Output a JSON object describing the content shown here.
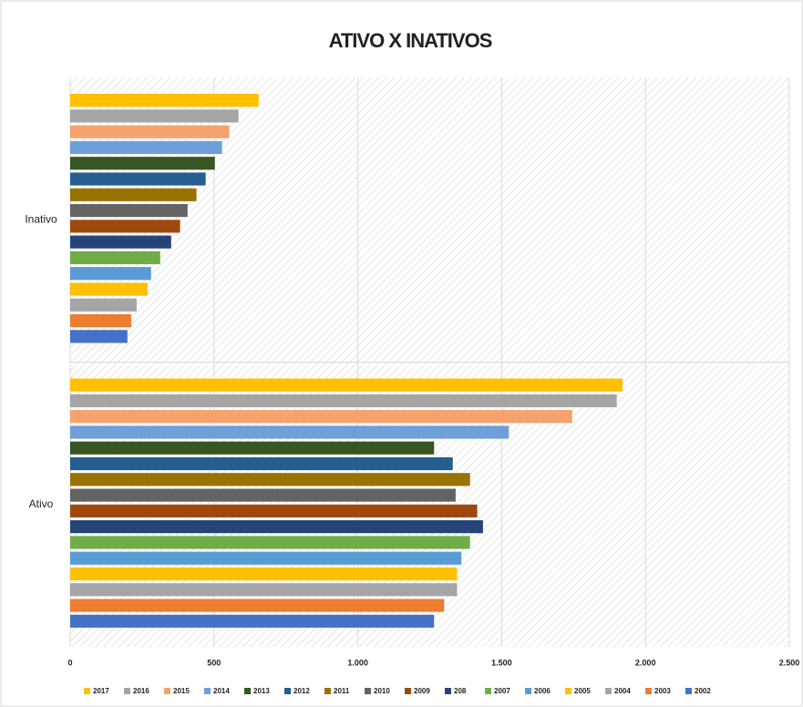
{
  "chart_data": {
    "type": "bar",
    "orientation": "horizontal",
    "title": "ATIVO X INATIVOS",
    "categories": [
      "Inativo",
      "Ativo"
    ],
    "series": [
      {
        "name": "2017",
        "color": "#ffc000",
        "values": [
          655,
          1920
        ]
      },
      {
        "name": "2016",
        "color": "#a5a5a5",
        "values": [
          585,
          1900
        ]
      },
      {
        "name": "2015",
        "color": "#f4a36c",
        "values": [
          553,
          1745
        ]
      },
      {
        "name": "2014",
        "color": "#6f9fd8",
        "values": [
          528,
          1525
        ]
      },
      {
        "name": "2013",
        "color": "#375623",
        "values": [
          503,
          1265
        ]
      },
      {
        "name": "2012",
        "color": "#255e91",
        "values": [
          471,
          1330
        ]
      },
      {
        "name": "2011",
        "color": "#997300",
        "values": [
          439,
          1390
        ]
      },
      {
        "name": "2010",
        "color": "#636363",
        "values": [
          408,
          1340
        ]
      },
      {
        "name": "2009",
        "color": "#9e480e",
        "values": [
          382,
          1415
        ]
      },
      {
        "name": "208",
        "color": "#264478",
        "values": [
          351,
          1435
        ]
      },
      {
        "name": "2007",
        "color": "#70ad47",
        "values": [
          313,
          1390
        ]
      },
      {
        "name": "2006",
        "color": "#5b9bd5",
        "values": [
          281,
          1360
        ]
      },
      {
        "name": "2005",
        "color": "#ffc000",
        "values": [
          269,
          1345
        ]
      },
      {
        "name": "2004",
        "color": "#a5a5a5",
        "values": [
          231,
          1345
        ]
      },
      {
        "name": "2003",
        "color": "#ed7d31",
        "values": [
          212,
          1300
        ]
      },
      {
        "name": "2002",
        "color": "#4472c4",
        "values": [
          199,
          1265
        ]
      }
    ],
    "xlim": [
      0,
      2500
    ],
    "xticks": [
      0,
      500,
      {
        "value": 1000,
        "label": "1.000"
      },
      {
        "value": 1500,
        "label": "1.500"
      },
      {
        "value": 2000,
        "label": "2.000"
      },
      {
        "value": 2500,
        "label": "2.500"
      }
    ],
    "grid": true,
    "legend": "bottom"
  }
}
